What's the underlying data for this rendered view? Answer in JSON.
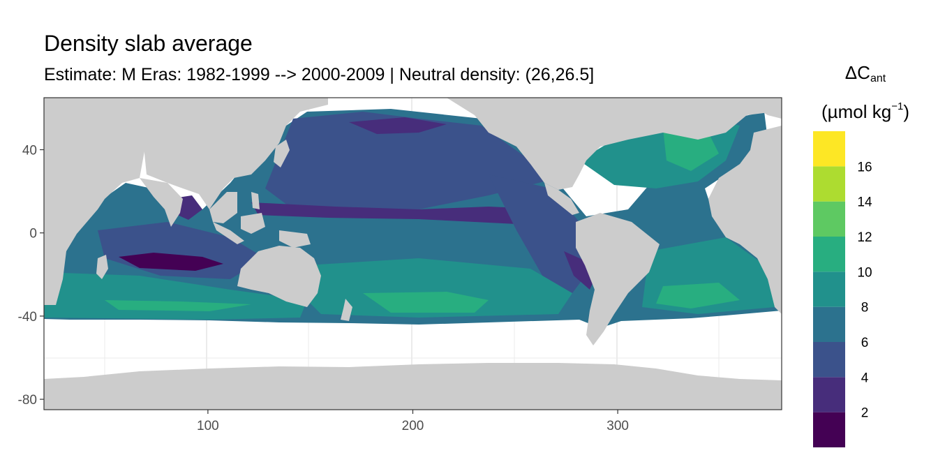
{
  "title": "Density slab average",
  "subtitle": "Estimate: M Eras: 1982-1999 --> 2000-2009 | Neutral density: (26,26.5]",
  "legend": {
    "title_symbol": "ΔC",
    "title_subscript": "ant",
    "unit_prefix": "(µmol kg",
    "unit_superscript": "−1",
    "unit_suffix": ")",
    "breaks": [
      {
        "from": 0,
        "to": 2,
        "color": "#440154"
      },
      {
        "from": 2,
        "to": 4,
        "color": "#472d7b"
      },
      {
        "from": 4,
        "to": 6,
        "color": "#3b528b"
      },
      {
        "from": 6,
        "to": 8,
        "color": "#2c728e"
      },
      {
        "from": 8,
        "to": 10,
        "color": "#21918c"
      },
      {
        "from": 10,
        "to": 12,
        "color": "#28ae80"
      },
      {
        "from": 12,
        "to": 14,
        "color": "#5ec962"
      },
      {
        "from": 14,
        "to": 16,
        "color": "#addc30"
      },
      {
        "from": 16,
        "to": 18,
        "color": "#fde725"
      }
    ],
    "tick_labels": [
      "2",
      "4",
      "6",
      "8",
      "10",
      "12",
      "14",
      "16"
    ]
  },
  "colors": {
    "land": "#cccccc",
    "no_data": "#ffffff",
    "grid": "#ebebeb",
    "panel_border": "#333333"
  },
  "axes": {
    "x": {
      "range": [
        20,
        380
      ],
      "ticks": [
        100,
        200,
        300
      ],
      "tick_labels": [
        "100",
        "200",
        "300"
      ]
    },
    "y": {
      "range": [
        -85,
        65
      ],
      "ticks": [
        40,
        0,
        -40,
        -80
      ],
      "tick_labels": [
        "40",
        "0",
        "-40",
        "-80"
      ]
    }
  }
}
